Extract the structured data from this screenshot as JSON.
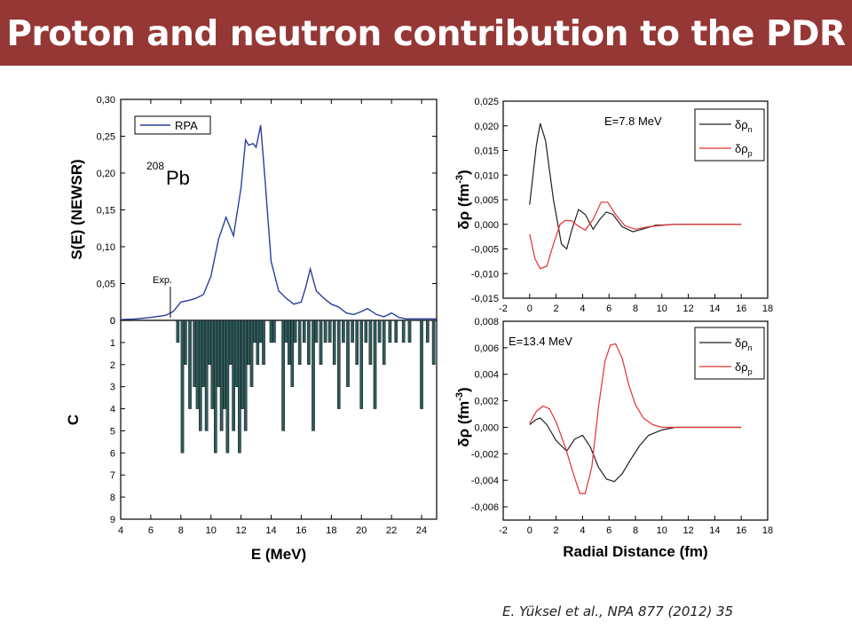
{
  "slide": {
    "title": "Proton and neutron contribution to the PDR",
    "citation": "E. Yüksel et al., NPA 877 (2012) 35"
  },
  "colors": {
    "banner": "#953735",
    "rpa": "#2a3f9c",
    "bars": "#2f5a5a",
    "neutron": "#222222",
    "proton": "#e53030"
  },
  "chart_data": [
    {
      "id": "strength",
      "type": "line",
      "ylabel": "S(E) (NEWSR)",
      "xlim": [
        4,
        25
      ],
      "ylim": [
        0,
        0.3
      ],
      "yticks": [
        "0",
        "0,05",
        "0,10",
        "0,15",
        "0,20",
        "0,25",
        "0,30"
      ],
      "legend": "RPA",
      "nucleus_mass": "208",
      "nucleus_symbol": "Pb",
      "annotation": "Exp.",
      "annotation_x": 7.3,
      "series": [
        {
          "name": "RPA",
          "x": [
            4,
            5,
            6,
            7,
            7.5,
            8,
            8.5,
            9,
            9.5,
            10,
            10.5,
            11,
            11.5,
            12,
            12.3,
            12.5,
            12.8,
            13,
            13.3,
            13.6,
            14,
            14.5,
            15,
            15.5,
            16,
            16.3,
            16.6,
            17,
            17.5,
            18,
            18.5,
            19,
            19.5,
            20,
            20.4,
            21,
            21.5,
            22,
            22.5,
            23,
            24,
            25
          ],
          "y": [
            0.001,
            0.002,
            0.004,
            0.007,
            0.012,
            0.025,
            0.027,
            0.03,
            0.035,
            0.06,
            0.11,
            0.14,
            0.115,
            0.18,
            0.245,
            0.238,
            0.24,
            0.235,
            0.265,
            0.19,
            0.08,
            0.04,
            0.03,
            0.022,
            0.025,
            0.045,
            0.07,
            0.04,
            0.03,
            0.022,
            0.018,
            0.01,
            0.008,
            0.012,
            0.016,
            0.008,
            0.005,
            0.01,
            0.004,
            0.002,
            0.002,
            0.002
          ]
        }
      ]
    },
    {
      "id": "configurations",
      "type": "bar",
      "xlabel": "E (MeV)",
      "ylabel": "C",
      "xlim": [
        4,
        25
      ],
      "ylim": [
        0,
        9
      ],
      "inverted": true,
      "xticks": [
        "4",
        "6",
        "8",
        "10",
        "12",
        "14",
        "16",
        "18",
        "20",
        "22",
        "24"
      ],
      "yticks": [
        "0",
        "1",
        "2",
        "3",
        "4",
        "5",
        "6",
        "7",
        "8",
        "9"
      ],
      "x": [
        7.8,
        8.1,
        8.3,
        8.6,
        8.9,
        9.1,
        9.3,
        9.5,
        9.7,
        9.9,
        10.1,
        10.3,
        10.5,
        10.7,
        10.9,
        11.1,
        11.3,
        11.5,
        11.7,
        11.9,
        12.1,
        12.3,
        12.5,
        12.7,
        12.9,
        13.1,
        13.3,
        13.5,
        14.0,
        14.2,
        14.8,
        15.0,
        15.2,
        15.4,
        15.6,
        15.9,
        16.2,
        16.5,
        16.8,
        17.0,
        17.3,
        17.6,
        17.9,
        18.2,
        18.5,
        18.8,
        19.1,
        19.4,
        19.7,
        20.0,
        20.3,
        20.6,
        20.9,
        21.2,
        21.5,
        21.9,
        22.3,
        22.8,
        23.2,
        24.0,
        24.4,
        24.8
      ],
      "values": [
        1,
        6,
        2,
        4,
        3,
        4,
        5,
        3,
        5,
        2,
        4,
        6,
        3,
        5,
        4,
        6,
        2,
        5,
        3,
        6,
        4,
        5,
        2,
        3,
        1,
        2,
        1,
        2,
        1,
        1,
        5,
        1,
        2,
        3,
        1,
        2,
        1,
        2,
        5,
        1,
        2,
        1,
        1,
        2,
        4,
        1,
        3,
        1,
        2,
        4,
        1,
        2,
        4,
        1,
        2,
        1,
        1,
        1,
        1,
        4,
        1,
        2
      ]
    },
    {
      "id": "density-7.8",
      "type": "line",
      "annotation": "E=7.8 MeV",
      "ylabel_main": "δρ (fm",
      "ylabel_sup": "-3",
      "ylabel_end": ")",
      "xlim": [
        -2,
        18
      ],
      "ylim": [
        -0.015,
        0.025
      ],
      "xticks": [
        "-2",
        "0",
        "2",
        "4",
        "6",
        "8",
        "10",
        "12",
        "14",
        "16",
        "18"
      ],
      "yticks": [
        "-0,015",
        "-0,010",
        "-0,005",
        "0,000",
        "0,005",
        "0,010",
        "0,015",
        "0,020",
        "0,025"
      ],
      "legend_symbol": "δρ",
      "series": [
        {
          "name": "n",
          "x": [
            0,
            0.5,
            0.8,
            1.2,
            1.8,
            2.4,
            2.8,
            3.2,
            3.7,
            4.2,
            4.8,
            5.3,
            5.8,
            6.3,
            7,
            7.8,
            8.5,
            9.5,
            11,
            13,
            16
          ],
          "y": [
            0.004,
            0.016,
            0.0205,
            0.017,
            0.005,
            -0.004,
            -0.005,
            -0.001,
            0.003,
            0.002,
            -0.001,
            0.001,
            0.0025,
            0.002,
            -0.0005,
            -0.0015,
            -0.001,
            -0.0002,
            0,
            0,
            0
          ]
        },
        {
          "name": "p",
          "x": [
            0,
            0.4,
            0.8,
            1.3,
            1.8,
            2.3,
            2.7,
            3.2,
            3.6,
            4.2,
            4.8,
            5.4,
            5.9,
            6.5,
            7.2,
            8,
            9,
            10,
            11,
            13,
            16
          ],
          "y": [
            -0.002,
            -0.007,
            -0.009,
            -0.0085,
            -0.004,
            0,
            0.0008,
            0.0007,
            -0.0002,
            -0.0012,
            0.001,
            0.0045,
            0.0045,
            0.002,
            -0.0003,
            -0.001,
            -0.0005,
            -0.0002,
            0,
            0,
            0
          ]
        }
      ]
    },
    {
      "id": "density-13.4",
      "type": "line",
      "annotation": "E=13.4 MeV",
      "xlabel": "Radial Distance (fm)",
      "ylabel_main": "δρ (fm",
      "ylabel_sup": "-3",
      "ylabel_end": ")",
      "xlim": [
        -2,
        18
      ],
      "ylim": [
        -0.007,
        0.008
      ],
      "xticks": [
        "-2",
        "0",
        "2",
        "4",
        "6",
        "8",
        "10",
        "12",
        "14",
        "16",
        "18"
      ],
      "yticks": [
        "-0,006",
        "-0,004",
        "-0,002",
        "0,000",
        "0,002",
        "0,004",
        "0,006",
        "0,008"
      ],
      "legend_symbol": "δρ",
      "series": [
        {
          "name": "n",
          "x": [
            0,
            0.5,
            0.8,
            1.3,
            2,
            2.8,
            3.4,
            4,
            4.6,
            5.2,
            5.8,
            6.4,
            7,
            7.6,
            8.3,
            9,
            10,
            11,
            12,
            14,
            16
          ],
          "y": [
            0.0002,
            0.0006,
            0.0007,
            0.0002,
            -0.001,
            -0.0018,
            -0.0009,
            -0.0006,
            -0.0015,
            -0.003,
            -0.0039,
            -0.0041,
            -0.0035,
            -0.0025,
            -0.0014,
            -0.0006,
            -0.0002,
            0,
            0,
            0,
            0
          ]
        },
        {
          "name": "p",
          "x": [
            0,
            0.5,
            1,
            1.5,
            2,
            2.7,
            3.3,
            3.8,
            4.2,
            4.7,
            5.2,
            5.7,
            6.1,
            6.5,
            7,
            7.5,
            8,
            8.6,
            9.3,
            10,
            11,
            12,
            14,
            16
          ],
          "y": [
            0.0003,
            0.0012,
            0.0016,
            0.0014,
            0.0004,
            -0.0015,
            -0.0035,
            -0.005,
            -0.005,
            -0.003,
            0.0015,
            0.005,
            0.0062,
            0.0063,
            0.0052,
            0.0032,
            0.0017,
            0.0007,
            0.0002,
            0,
            0,
            0,
            0,
            0
          ]
        }
      ]
    }
  ]
}
